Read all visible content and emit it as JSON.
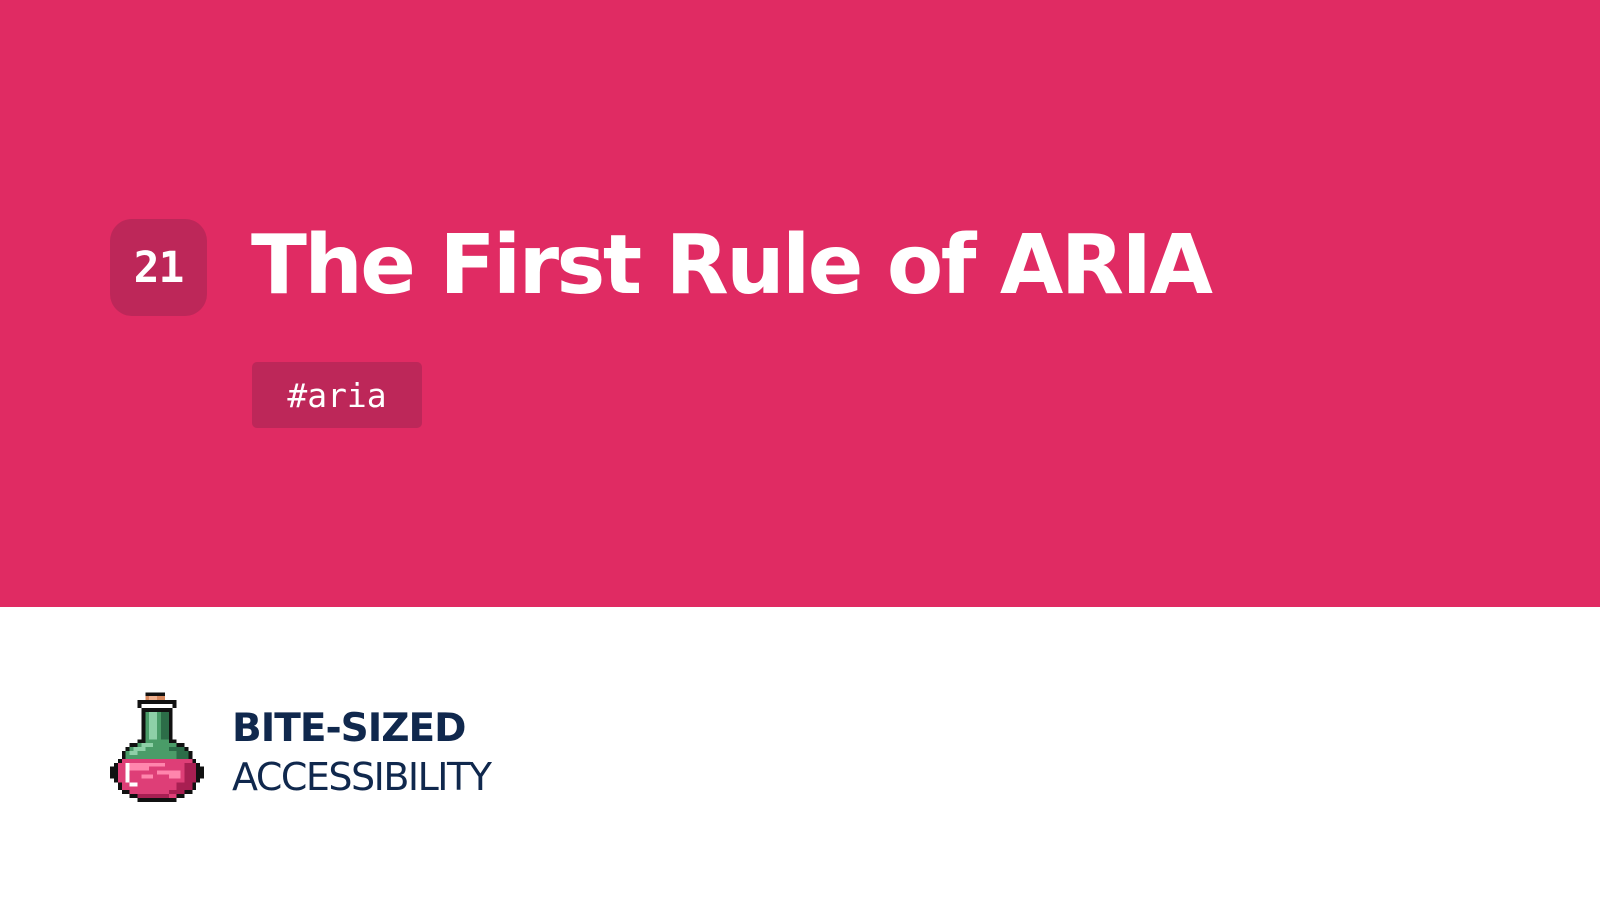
{
  "hero": {
    "episode_number": "21",
    "title": "The First Rule of ARIA",
    "tag": "#aria"
  },
  "brand": {
    "line_1": "BITE-SIZED",
    "line_2": "ACCESSIBILITY",
    "logo_icon": "potion-bottle-icon"
  },
  "colors": {
    "hero_background": "#e02b63",
    "badge_background": "#bd2759",
    "brand_text": "#10284d",
    "page_background": "#ffffff"
  }
}
